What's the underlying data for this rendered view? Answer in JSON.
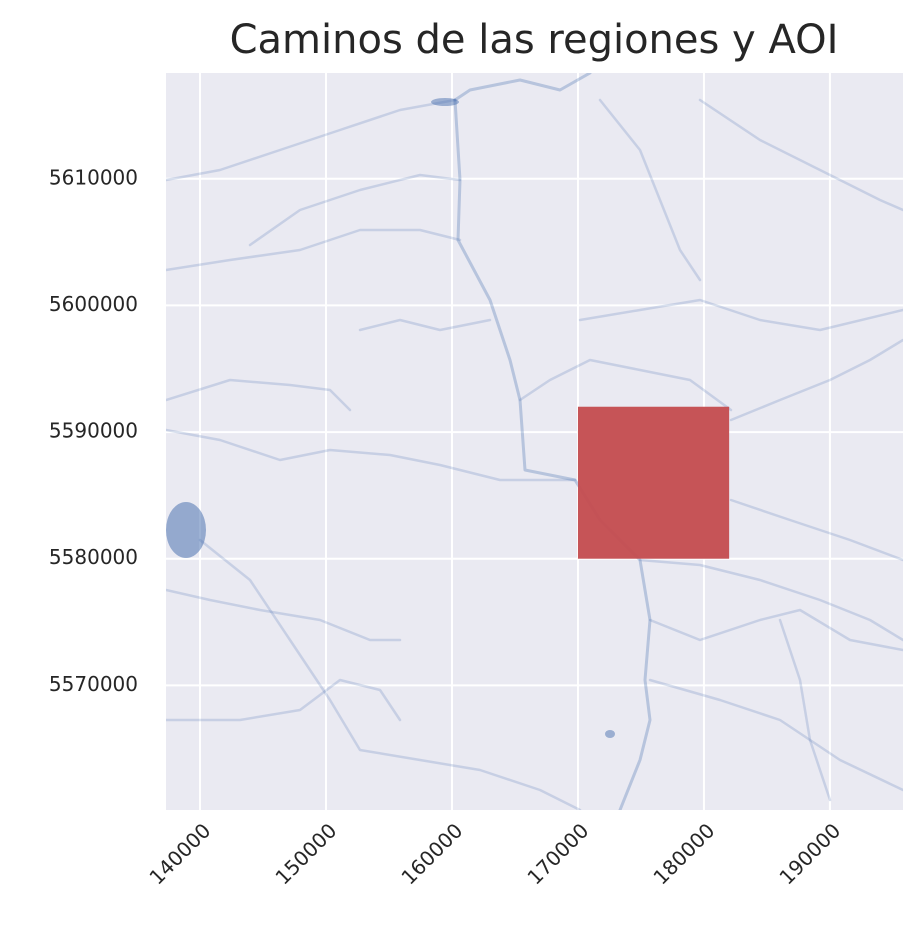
{
  "chart_data": {
    "type": "map",
    "title": "Caminos de las regiones y AOI",
    "xlim": [
      137300,
      195800
    ],
    "ylim": [
      5560160,
      5618350
    ],
    "xticks": [
      140000,
      150000,
      160000,
      170000,
      180000,
      190000
    ],
    "yticks": [
      5570000,
      5580000,
      5590000,
      5600000,
      5610000
    ],
    "grid": true,
    "aoi": {
      "x": [
        170000,
        182000
      ],
      "y": [
        5580000,
        5592000
      ],
      "color": "#c44e52"
    }
  }
}
